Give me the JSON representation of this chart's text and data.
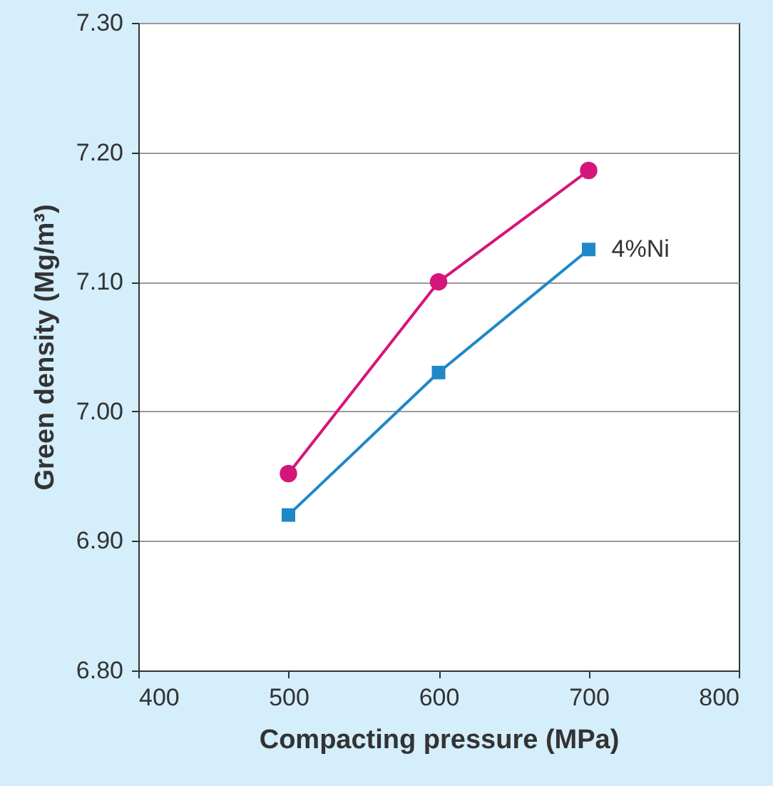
{
  "chart_data": {
    "type": "line",
    "xlabel": "Compacting pressure (MPa)",
    "ylabel": "Green density (Mg/m³)",
    "x": [
      500,
      600,
      700
    ],
    "series": [
      {
        "color": "#d6157a",
        "marker": "circle",
        "values": [
          6.952,
          7.1,
          7.186
        ]
      },
      {
        "name": "4%Ni",
        "color": "#1e88c8",
        "marker": "square",
        "values": [
          6.92,
          7.03,
          7.125
        ]
      }
    ],
    "xlim": [
      400,
      800
    ],
    "xticks": [
      400,
      500,
      600,
      700,
      800
    ],
    "ylim": [
      6.8,
      7.3
    ],
    "yticks": [
      {
        "value": 6.8,
        "label": "6.80"
      },
      {
        "value": 6.9,
        "label": "6.90"
      },
      {
        "value": 7.0,
        "label": "7.00"
      },
      {
        "value": 7.1,
        "label": "7.10"
      },
      {
        "value": 7.2,
        "label": "7.20"
      },
      {
        "value": 7.3,
        "label": "7.30"
      }
    ],
    "grid": "y",
    "line_style": "solid"
  }
}
